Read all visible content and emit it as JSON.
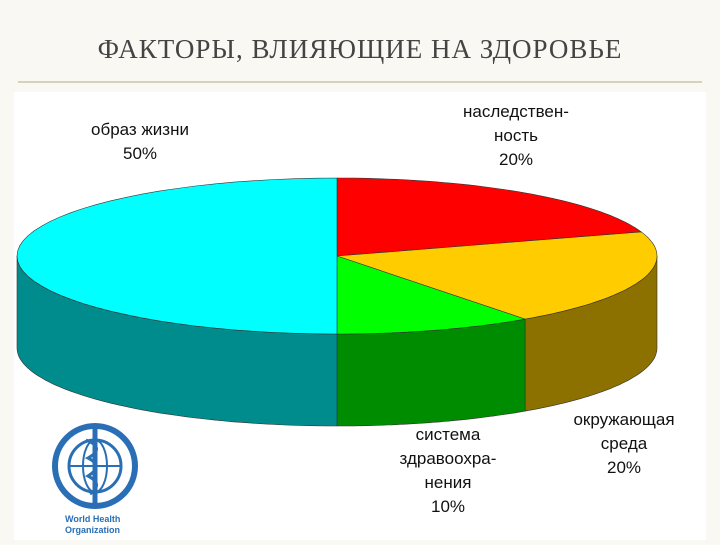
{
  "title": "ФАКТОРЫ, ВЛИЯЮЩИЕ НА ЗДОРОВЬЕ",
  "logo": {
    "lines": [
      "World Health",
      "Organization"
    ]
  },
  "chart_data": {
    "type": "pie3d",
    "categories": [
      [
        "образ жизни"
      ],
      [
        "наследствен-",
        "ность"
      ],
      [
        "окружающая",
        "среда"
      ],
      [
        "система",
        "здравоохра-",
        "нения"
      ]
    ],
    "values": [
      50,
      20,
      20,
      10
    ],
    "value_labels": [
      "50%",
      "20%",
      "20%",
      "10%"
    ],
    "colors": [
      "#00ffff",
      "#ff0000",
      "#ffcc00",
      "#00ff00"
    ]
  }
}
